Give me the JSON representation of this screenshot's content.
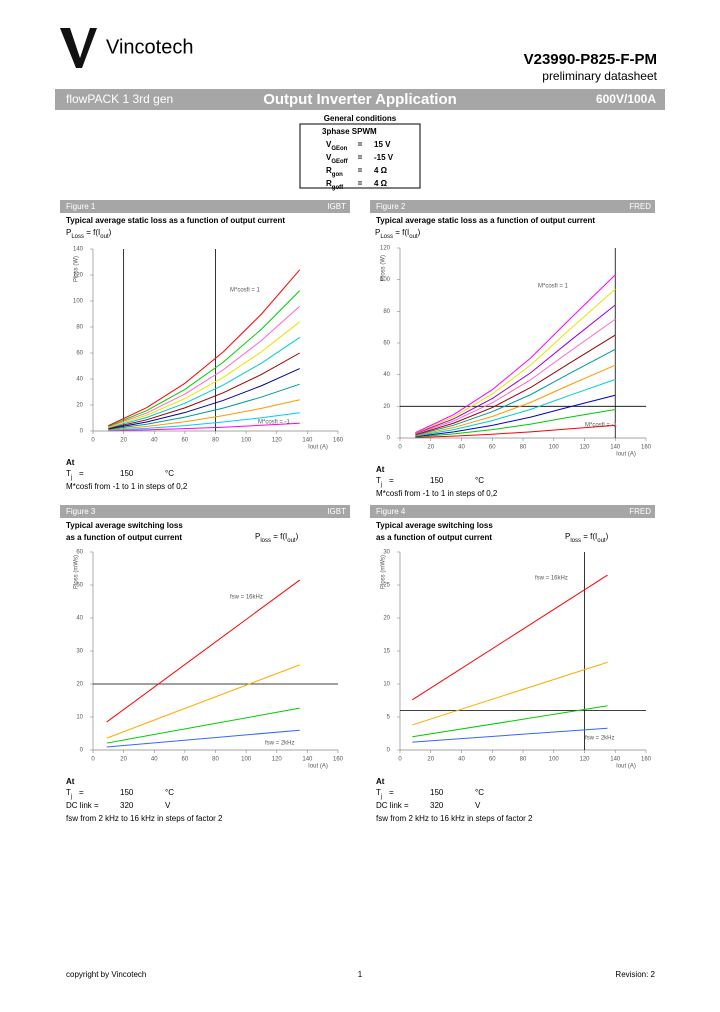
{
  "header": {
    "brand": "Vincotech",
    "part_number": "V23990-P825-F-PM",
    "subtitle": "preliminary datasheet"
  },
  "section_bar": {
    "left": "flowPACK 1 3rd gen",
    "center": "Output Inverter Application",
    "right": "600V/100A"
  },
  "conditions": {
    "title": "General conditions",
    "mode": "3phase SPWM",
    "rows": [
      {
        "symbol": "V",
        "sub": "GEon",
        "eq": "=",
        "value": "15 V"
      },
      {
        "symbol": "V",
        "sub": "GEoff",
        "eq": "=",
        "value": "-15 V"
      },
      {
        "symbol": "R",
        "sub": "gon",
        "eq": "=",
        "value": "4 Ω"
      },
      {
        "symbol": "R",
        "sub": "goff",
        "eq": "=",
        "value": "4 Ω"
      }
    ]
  },
  "figures": [
    {
      "label": "Figure 1",
      "device": "IGBT",
      "title": [
        "Typical average static loss as a function of output current"
      ],
      "formula": {
        "main": "P",
        "main_sub": "Loss",
        "rest": " = f(I",
        "rest_sub": "out",
        "close": ")"
      },
      "at": "At",
      "temperature": {
        "symbol": "T",
        "sub": "j",
        "eq": "=",
        "value": 150,
        "unit": "°C"
      },
      "note": "M*cosfi from -1 to 1 in steps of 0,2"
    },
    {
      "label": "Figure 2",
      "device": "FRED",
      "title": [
        "Typical average static loss as a function of output current"
      ],
      "formula": {
        "main": "P",
        "main_sub": "Loss",
        "rest": " = f(I",
        "rest_sub": "out",
        "close": ")"
      },
      "at": "At",
      "temperature": {
        "symbol": "T",
        "sub": "j",
        "eq": "=",
        "value": 150,
        "unit": "°C"
      },
      "note": "M*cosfi from -1 to 1 in steps of 0,2"
    },
    {
      "label": "Figure 3",
      "device": "IGBT",
      "title": [
        "Typical average switching loss",
        "as a function of output current"
      ],
      "formula": {
        "main": "P",
        "main_sub": "loss",
        "rest": " = f(I",
        "rest_sub": "out",
        "close": ")"
      },
      "at": "At",
      "temperature": {
        "symbol": "T",
        "sub": "j",
        "eq": "=",
        "value": 150,
        "unit": "°C"
      },
      "dc_link": {
        "label": "DC link =",
        "value": 320,
        "unit": "V"
      },
      "note": "fsw from 2 kHz to 16 kHz in steps of factor 2"
    },
    {
      "label": "Figure 4",
      "device": "FRED",
      "title": [
        "Typical average switching loss",
        "as a function of output current"
      ],
      "formula": {
        "main": "P",
        "main_sub": "loss",
        "rest": " = f(I",
        "rest_sub": "out",
        "close": ")"
      },
      "at": "At",
      "temperature": {
        "symbol": "T",
        "sub": "j",
        "eq": "=",
        "value": 150,
        "unit": "°C"
      },
      "dc_link": {
        "label": "DC link =",
        "value": 320,
        "unit": "V"
      },
      "note": "fsw from 2 kHz to 16 kHz in steps of factor 2"
    }
  ],
  "chart_data": [
    {
      "type": "line",
      "y_label": "Ploss (W)",
      "x_label": "Iout (A)",
      "xlim": [
        0,
        160
      ],
      "xticks": [
        0,
        20,
        40,
        60,
        80,
        100,
        120,
        140,
        160
      ],
      "ylim": [
        0,
        140
      ],
      "yticks": [
        0,
        20,
        40,
        60,
        80,
        100,
        120,
        140
      ],
      "vlines": [
        20,
        80
      ],
      "hlines": [],
      "annotations": [
        "M*cosfi = 1",
        "M*cosfi = -1"
      ],
      "x": [
        10,
        35,
        60,
        85,
        110,
        135
      ],
      "series": [
        {
          "color": "#ff00ff",
          "values": [
            0.2,
            0.9,
            1.8,
            2.9,
            4.4,
            6
          ]
        },
        {
          "color": "#00ccff",
          "values": [
            0.5,
            2,
            4.1,
            6.9,
            10.2,
            14
          ]
        },
        {
          "color": "#ff9900",
          "values": [
            0.8,
            3.5,
            7.1,
            11.8,
            17.4,
            24
          ]
        },
        {
          "color": "#009999",
          "values": [
            1.2,
            5.2,
            10.7,
            17.6,
            26.1,
            36
          ]
        },
        {
          "color": "#000099",
          "values": [
            1.6,
            6.9,
            14.2,
            23.5,
            34.8,
            48
          ]
        },
        {
          "color": "#990000",
          "values": [
            2,
            8.6,
            17.8,
            29.4,
            43.5,
            60
          ]
        },
        {
          "color": "#00cccc",
          "values": [
            2.4,
            10.4,
            21.3,
            35.3,
            52.2,
            72
          ]
        },
        {
          "color": "#e6e600",
          "values": [
            2.8,
            12.1,
            24.9,
            41.2,
            60.9,
            84
          ]
        },
        {
          "color": "#ff66cc",
          "values": [
            3.2,
            13.8,
            28.4,
            47,
            69.6,
            96
          ]
        },
        {
          "color": "#00cc00",
          "values": [
            3.6,
            15.6,
            32,
            52.9,
            78.3,
            108
          ]
        },
        {
          "color": "#ff0000",
          "values": [
            4.1,
            17.9,
            36.7,
            60.8,
            89.9,
            124
          ]
        }
      ]
    },
    {
      "type": "line",
      "y_label": "Ploss (W)",
      "x_label": "Iout (A)",
      "xlim": [
        0,
        160
      ],
      "xticks": [
        0,
        20,
        40,
        60,
        80,
        100,
        120,
        140,
        160
      ],
      "ylim": [
        0,
        120
      ],
      "yticks": [
        0,
        20,
        40,
        60,
        80,
        100,
        120
      ],
      "vlines": [
        140
      ],
      "hlines": [
        20
      ],
      "annotations": [
        "M*cosfi = 1",
        "M*cosfi = -1"
      ],
      "x": [
        10,
        35,
        60,
        85,
        110,
        140
      ],
      "series": [
        {
          "color": "#ff0000",
          "values": [
            0.3,
            1.2,
            2.4,
            3.9,
            5.8,
            8
          ]
        },
        {
          "color": "#00cc00",
          "values": [
            0.6,
            2.6,
            5.3,
            8.8,
            13.1,
            18
          ]
        },
        {
          "color": "#0000cc",
          "values": [
            0.9,
            3.9,
            8,
            13.2,
            19.6,
            27
          ]
        },
        {
          "color": "#00cccc",
          "values": [
            1.2,
            5.3,
            11,
            18.1,
            26.8,
            37
          ]
        },
        {
          "color": "#ff9900",
          "values": [
            1.5,
            6.6,
            13.6,
            22.5,
            33.4,
            46
          ]
        },
        {
          "color": "#009999",
          "values": [
            1.8,
            8.1,
            16.6,
            27.4,
            40.6,
            56
          ]
        },
        {
          "color": "#990000",
          "values": [
            2.1,
            9.4,
            19.2,
            31.9,
            47.1,
            65
          ]
        },
        {
          "color": "#ff66cc",
          "values": [
            2.5,
            10.8,
            22.2,
            36.8,
            54.4,
            75
          ]
        },
        {
          "color": "#9900cc",
          "values": [
            2.8,
            12.1,
            24.9,
            41.2,
            60.9,
            84
          ]
        },
        {
          "color": "#e6e600",
          "values": [
            3.1,
            13.5,
            27.8,
            46.1,
            68.2,
            94
          ]
        },
        {
          "color": "#ff00ff",
          "values": [
            3.4,
            14.8,
            30.5,
            50.5,
            74.7,
            103
          ]
        }
      ]
    },
    {
      "type": "line",
      "y_label": "Ploss (mWs)",
      "x_label": "Iout (A)",
      "xlim": [
        0,
        160
      ],
      "xticks": [
        0,
        20,
        40,
        60,
        80,
        100,
        120,
        140,
        160
      ],
      "ylim": [
        0,
        60
      ],
      "yticks": [
        0,
        10,
        20,
        30,
        40,
        50,
        60
      ],
      "vlines": [],
      "hlines": [
        20
      ],
      "annotations": [
        "fsw = 16kHz",
        "fsw = 2kHz"
      ],
      "x": [
        9,
        135
      ],
      "series": [
        {
          "color": "#ff0000",
          "values": [
            8.5,
            51.5
          ]
        },
        {
          "color": "#ffaa00",
          "values": [
            3.6,
            25.8
          ]
        },
        {
          "color": "#00cc00",
          "values": [
            2.1,
            12.7
          ]
        },
        {
          "color": "#3366ff",
          "values": [
            0.9,
            6
          ]
        }
      ]
    },
    {
      "type": "line",
      "y_label": "Ploss (mWs)",
      "x_label": "Iout (A)",
      "xlim": [
        0,
        160
      ],
      "xticks": [
        0,
        20,
        40,
        60,
        80,
        100,
        120,
        140,
        160
      ],
      "ylim": [
        0,
        30
      ],
      "yticks": [
        0,
        5,
        10,
        15,
        20,
        25,
        30
      ],
      "vlines": [
        120
      ],
      "hlines": [
        6
      ],
      "annotations": [
        "fsw = 16kHz",
        "fsw = 2kHz"
      ],
      "x": [
        8,
        135
      ],
      "series": [
        {
          "color": "#ff0000",
          "values": [
            7.6,
            26.5
          ]
        },
        {
          "color": "#ffaa00",
          "values": [
            3.8,
            13.3
          ]
        },
        {
          "color": "#00cc00",
          "values": [
            2,
            6.7
          ]
        },
        {
          "color": "#3366ff",
          "values": [
            1.2,
            3.3
          ]
        }
      ]
    }
  ],
  "footer": {
    "left": "copyright by Vincotech",
    "center": "1",
    "right": "Revision: 2"
  }
}
